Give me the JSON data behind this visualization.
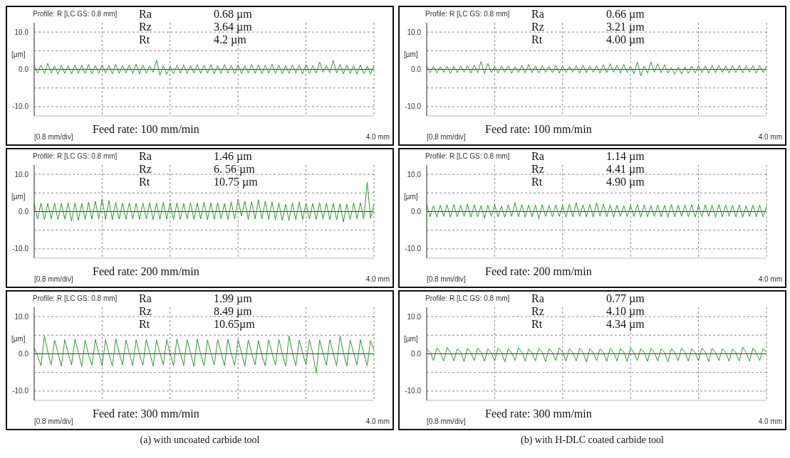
{
  "chart_data": [
    {
      "type": "line",
      "title": "Profile: R [LC GS: 0.8 mm]",
      "xlabel": "[0.8 mm/div]",
      "ylabel": "[µm]",
      "color": "#2e9a2e",
      "grid": true,
      "annotations": [
        "Ra",
        "0.68 µm",
        "Rz",
        "3.64 µm",
        "Rt",
        "4.2 µm",
        "Feed rate: 100 mm/min",
        "4.0 mm"
      ],
      "ylim": [
        -12.5,
        12.5
      ],
      "yticks": [
        {
          "value": 10,
          "label": "10.0"
        },
        {
          "value": 5,
          "label": null
        },
        {
          "value": 0,
          "label": "0.0"
        },
        {
          "value": -5,
          "label": null
        },
        {
          "value": -10,
          "label": "-10.0"
        }
      ],
      "ref_lines": [
        {
          "axis": "y",
          "value": 0,
          "color": "#333333"
        }
      ],
      "categories": [
        null,
        null,
        null,
        null,
        null,
        null,
        null,
        null,
        null,
        null,
        null,
        null,
        null,
        null,
        null,
        null,
        null,
        null,
        null,
        null,
        null,
        null,
        null,
        null,
        null,
        null,
        null,
        null,
        null,
        null,
        null,
        null,
        null,
        null,
        null,
        null,
        null,
        null,
        null,
        null,
        null,
        null,
        null,
        null,
        null,
        null,
        null,
        null,
        null,
        null,
        null,
        null,
        null,
        null,
        null,
        null,
        null,
        null,
        null,
        null,
        null,
        null,
        null,
        null,
        null,
        null,
        null,
        null,
        null,
        null,
        null,
        null,
        null,
        null,
        null,
        null,
        null,
        null,
        null,
        null,
        null,
        null,
        null,
        null,
        null,
        null,
        null,
        null,
        null,
        null,
        null,
        null,
        null,
        null,
        null,
        null,
        null,
        null,
        null,
        null,
        null
      ],
      "values": [
        1.0,
        -1.0,
        1.2,
        -1.1,
        1.6,
        -1.0,
        0.9,
        -1.3,
        1.1,
        -1.1,
        1.0,
        -1.2,
        1.2,
        -1.0,
        1.1,
        -1.1,
        1.3,
        -1.2,
        1.0,
        -1.1,
        1.2,
        -1.0,
        1.1,
        -1.2,
        1.3,
        -1.1,
        1.0,
        -1.0,
        1.2,
        -1.1,
        1.4,
        -1.2,
        1.1,
        -1.0,
        0.9,
        -0.8,
        2.5,
        -1.6,
        1.0,
        -1.3,
        0.8,
        -1.2,
        1.1,
        -1.0,
        1.2,
        -1.1,
        1.0,
        -1.0,
        1.3,
        -1.1,
        1.1,
        -1.0,
        1.2,
        -1.2,
        1.0,
        -1.1,
        1.3,
        -1.0,
        1.1,
        -1.2,
        1.2,
        -1.1,
        1.0,
        -1.0,
        1.3,
        -1.1,
        1.2,
        -1.2,
        1.1,
        -1.0,
        1.4,
        -1.1,
        1.1,
        -1.2,
        1.0,
        -1.1,
        1.2,
        -1.0,
        1.1,
        -1.2,
        1.3,
        -1.1,
        1.0,
        -1.0,
        2.0,
        -0.8,
        1.0,
        -0.9,
        2.4,
        -1.0,
        1.3,
        -1.2,
        1.1,
        -1.1,
        1.0,
        -1.3,
        1.2,
        -1.2,
        0.9,
        -1.3,
        1.1
      ]
    },
    {
      "type": "line",
      "title": "Profile: R [LC GS: 0.8 mm]",
      "xlabel": "[0.8 mm/div]",
      "ylabel": "[µm]",
      "color": "#2e9a2e",
      "grid": true,
      "annotations": [
        "Ra",
        "0.66 µm",
        "Rz",
        "3.21 µm",
        "Rt",
        "4.00 µm",
        "Feed rate: 100 mm/min",
        "4.0 mm"
      ],
      "ylim": [
        -12.5,
        12.5
      ],
      "yticks": [
        {
          "value": 10,
          "label": "10.0"
        },
        {
          "value": 5,
          "label": null
        },
        {
          "value": 0,
          "label": "0.0"
        },
        {
          "value": -5,
          "label": null
        },
        {
          "value": -10,
          "label": "-10.0"
        }
      ],
      "ref_lines": [
        {
          "axis": "y",
          "value": 0,
          "color": "#333333"
        }
      ],
      "categories": [
        null,
        null,
        null,
        null,
        null,
        null,
        null,
        null,
        null,
        null,
        null,
        null,
        null,
        null,
        null,
        null,
        null,
        null,
        null,
        null,
        null,
        null,
        null,
        null,
        null,
        null,
        null,
        null,
        null,
        null,
        null,
        null,
        null,
        null,
        null,
        null,
        null,
        null,
        null,
        null,
        null,
        null,
        null,
        null,
        null,
        null,
        null,
        null,
        null,
        null,
        null,
        null,
        null,
        null,
        null,
        null,
        null,
        null,
        null,
        null,
        null,
        null,
        null,
        null,
        null,
        null,
        null,
        null,
        null,
        null,
        null,
        null,
        null,
        null,
        null,
        null,
        null,
        null,
        null,
        null,
        null,
        null,
        null,
        null,
        null,
        null,
        null,
        null,
        null,
        null,
        null,
        null,
        null,
        null,
        null,
        null,
        null,
        null,
        null,
        null,
        null
      ],
      "values": [
        1.0,
        -0.9,
        0.8,
        -1.0,
        0.7,
        -0.8,
        0.9,
        -1.1,
        0.8,
        -0.9,
        0.9,
        -0.8,
        1.0,
        -1.0,
        1.2,
        -0.9,
        2.1,
        -1.1,
        1.6,
        -0.9,
        0.8,
        -1.0,
        0.9,
        -0.8,
        1.0,
        -1.1,
        0.7,
        -0.9,
        1.1,
        -1.0,
        1.3,
        -0.9,
        0.9,
        -1.0,
        1.0,
        -0.8,
        0.8,
        -0.9,
        1.0,
        -1.0,
        0.9,
        -0.9,
        0.8,
        -0.8,
        1.0,
        -1.0,
        1.1,
        -0.9,
        0.9,
        -0.8,
        1.0,
        -1.0,
        1.2,
        -0.9,
        1.5,
        -0.8,
        1.1,
        -1.0,
        1.3,
        -0.9,
        0.8,
        -1.2,
        2.0,
        -1.8,
        0.9,
        -1.0,
        2.0,
        -0.8,
        1.5,
        -0.9,
        1.2,
        -1.0,
        0.5,
        -1.3,
        0.6,
        -1.2,
        0.7,
        -1.1,
        0.9,
        -1.0,
        1.0,
        -0.9,
        0.9,
        -1.0,
        1.1,
        -0.9,
        1.0,
        -0.8,
        0.9,
        -1.0,
        1.0,
        -0.9,
        1.1,
        -1.0,
        0.9,
        -0.8,
        1.0,
        -1.0,
        1.1,
        -0.9,
        0.9
      ]
    },
    {
      "type": "line",
      "title": "Profile: R [LC GS: 0.8 mm]",
      "xlabel": "[0.8 mm/div]",
      "ylabel": "[µm]",
      "color": "#2e9a2e",
      "grid": true,
      "annotations": [
        "Ra",
        "1.46 µm",
        "Rz",
        "6. 56 µm",
        "Rt",
        "10.75 µm",
        "Feed rate: 200 mm/min",
        "4.0 mm"
      ],
      "ylim": [
        -12.5,
        12.5
      ],
      "yticks": [
        {
          "value": 10,
          "label": "10.0"
        },
        {
          "value": 5,
          "label": null
        },
        {
          "value": 0,
          "label": "0.0"
        },
        {
          "value": -5,
          "label": null
        },
        {
          "value": -10,
          "label": "-10.0"
        }
      ],
      "ref_lines": [
        {
          "axis": "y",
          "value": 0,
          "color": "#333333"
        }
      ],
      "categories": [
        null,
        null,
        null,
        null,
        null,
        null,
        null,
        null,
        null,
        null,
        null,
        null,
        null,
        null,
        null,
        null,
        null,
        null,
        null,
        null,
        null,
        null,
        null,
        null,
        null,
        null,
        null,
        null,
        null,
        null,
        null,
        null,
        null,
        null,
        null,
        null,
        null,
        null,
        null,
        null,
        null,
        null,
        null,
        null,
        null,
        null,
        null,
        null,
        null,
        null,
        null,
        null,
        null,
        null,
        null,
        null,
        null,
        null,
        null,
        null,
        null,
        null,
        null,
        null,
        null,
        null,
        null,
        null,
        null,
        null,
        null,
        null,
        null,
        null,
        null,
        null,
        null,
        null,
        null,
        null,
        null,
        null,
        null,
        null,
        null,
        null,
        null,
        null,
        null,
        null,
        null,
        null,
        null,
        null,
        null,
        null,
        null,
        null,
        null,
        null,
        null
      ],
      "values": [
        2.0,
        -2.0,
        2.3,
        -2.1,
        2.2,
        -2.0,
        2.3,
        -2.2,
        2.2,
        -2.0,
        2.4,
        -2.6,
        2.3,
        -2.3,
        2.2,
        -2.1,
        2.5,
        -2.0,
        2.8,
        -2.0,
        3.5,
        -2.1,
        3.0,
        -2.2,
        2.5,
        -2.0,
        2.3,
        -2.1,
        2.4,
        -2.0,
        2.2,
        -2.1,
        2.3,
        -2.0,
        2.4,
        -2.2,
        2.3,
        -2.1,
        2.5,
        -2.0,
        2.4,
        -2.2,
        2.3,
        -2.1,
        2.2,
        -2.0,
        2.4,
        -2.1,
        2.3,
        -2.0,
        2.5,
        -2.2,
        2.3,
        -2.1,
        2.4,
        -2.0,
        2.2,
        -2.1,
        2.6,
        -2.0,
        3.3,
        -1.2,
        2.8,
        -2.1,
        2.7,
        -2.0,
        3.2,
        -2.0,
        2.8,
        -2.1,
        2.6,
        -2.2,
        2.3,
        -2.4,
        2.0,
        -2.4,
        2.4,
        -2.2,
        2.6,
        -2.1,
        2.3,
        -2.0,
        2.2,
        -2.1,
        2.4,
        -2.0,
        2.3,
        -2.1,
        2.2,
        -2.2,
        2.1,
        -2.8,
        2.0,
        -2.2,
        2.3,
        -1.9,
        2.4,
        -2.0,
        7.9,
        -1.8,
        2.0
      ]
    },
    {
      "type": "line",
      "title": "Profile: R [LC GS: 0.8 mm]",
      "xlabel": "[0.8 mm/div]",
      "ylabel": "[µm]",
      "color": "#2e9a2e",
      "grid": true,
      "annotations": [
        "Ra",
        "1.14 µm",
        "Rz",
        "4.41 µm",
        "Rt",
        "4.90 µm",
        "Feed rate: 200 mm/min",
        "4.0 mm"
      ],
      "ylim": [
        -12.5,
        12.5
      ],
      "yticks": [
        {
          "value": 10,
          "label": "10.0"
        },
        {
          "value": 5,
          "label": null
        },
        {
          "value": 0,
          "label": "0.0"
        },
        {
          "value": -5,
          "label": null
        },
        {
          "value": -10,
          "label": "-10.0"
        }
      ],
      "ref_lines": [
        {
          "axis": "y",
          "value": 0,
          "color": "#333333"
        }
      ],
      "categories": [
        null,
        null,
        null,
        null,
        null,
        null,
        null,
        null,
        null,
        null,
        null,
        null,
        null,
        null,
        null,
        null,
        null,
        null,
        null,
        null,
        null,
        null,
        null,
        null,
        null,
        null,
        null,
        null,
        null,
        null,
        null,
        null,
        null,
        null,
        null,
        null,
        null,
        null,
        null,
        null,
        null,
        null,
        null,
        null,
        null,
        null,
        null,
        null,
        null,
        null,
        null,
        null,
        null,
        null,
        null,
        null,
        null,
        null,
        null,
        null,
        null,
        null,
        null,
        null,
        null,
        null,
        null,
        null,
        null,
        null,
        null,
        null,
        null,
        null,
        null,
        null,
        null,
        null,
        null,
        null,
        null,
        null,
        null,
        null,
        null,
        null,
        null,
        null,
        null,
        null,
        null,
        null,
        null,
        null,
        null,
        null,
        null,
        null,
        null,
        null,
        null
      ],
      "values": [
        1.9,
        -1.4,
        1.6,
        -1.5,
        1.7,
        -1.3,
        1.8,
        -1.5,
        1.9,
        -1.4,
        1.7,
        -1.3,
        2.0,
        -1.5,
        1.8,
        -1.4,
        1.6,
        -1.8,
        1.7,
        -1.3,
        1.9,
        -1.4,
        1.5,
        -1.5,
        1.8,
        -1.3,
        2.4,
        -1.4,
        1.9,
        -1.5,
        1.7,
        -1.4,
        1.8,
        -2.0,
        1.9,
        -1.3,
        1.6,
        -1.4,
        1.8,
        -1.3,
        1.7,
        -1.5,
        2.0,
        -1.4,
        2.4,
        -1.3,
        1.8,
        -1.4,
        1.9,
        -1.5,
        2.4,
        -1.3,
        2.0,
        -1.4,
        1.8,
        -1.5,
        1.7,
        -1.3,
        1.6,
        -1.4,
        1.7,
        -1.3,
        1.9,
        -1.5,
        1.8,
        -1.4,
        1.6,
        -1.3,
        1.8,
        -1.4,
        1.7,
        -1.5,
        1.9,
        -1.4,
        1.7,
        -1.3,
        1.8,
        -1.4,
        1.9,
        -1.5,
        1.7,
        -1.4,
        1.8,
        -1.3,
        1.7,
        -1.5,
        1.9,
        -1.4,
        1.8,
        -1.3,
        1.7,
        -1.4,
        1.8,
        -1.5,
        1.6,
        -1.3,
        1.7,
        -1.4,
        1.8,
        -1.5,
        1.5
      ]
    },
    {
      "type": "line",
      "title": "Profile: R [LC GS: 0.8 mm]",
      "xlabel": "[0.8 mm/div]",
      "ylabel": "[µm]",
      "color": "#2e9a2e",
      "grid": true,
      "annotations": [
        "Ra",
        "1.99 µm",
        "Rz",
        "8.49 µm",
        "Rt",
        "10.65µm",
        "Feed rate: 300 mm/min",
        "4.0 mm",
        "(a) with uncoated carbide tool"
      ],
      "ylim": [
        -12.5,
        12.5
      ],
      "yticks": [
        {
          "value": 10,
          "label": "10.0"
        },
        {
          "value": 5,
          "label": null
        },
        {
          "value": 0,
          "label": "0.0"
        },
        {
          "value": -5,
          "label": null
        },
        {
          "value": -10,
          "label": "-10.0"
        }
      ],
      "ref_lines": [
        {
          "axis": "y",
          "value": 0,
          "color": "#333333"
        }
      ],
      "categories": [
        null,
        null,
        null,
        null,
        null,
        null,
        null,
        null,
        null,
        null,
        null,
        null,
        null,
        null,
        null,
        null,
        null,
        null,
        null,
        null,
        null,
        null,
        null,
        null,
        null,
        null,
        null,
        null,
        null,
        null,
        null,
        null,
        null,
        null,
        null,
        null,
        null,
        null,
        null,
        null,
        null,
        null,
        null,
        null,
        null,
        null,
        null,
        null,
        null,
        null,
        null,
        null,
        null,
        null,
        null,
        null,
        null,
        null,
        null,
        null,
        null,
        null,
        null,
        null,
        null,
        null,
        null,
        null,
        null,
        null,
        null,
        null,
        null,
        null,
        null,
        null,
        null,
        null,
        null,
        null,
        null,
        null,
        null,
        null,
        null,
        null,
        null,
        null,
        null,
        null,
        null,
        null,
        null,
        null,
        null,
        null,
        null,
        null,
        null,
        null,
        null
      ],
      "values": [
        1.5,
        -0.5,
        -3.2,
        4.8,
        0.5,
        -3.0,
        3.7,
        0.3,
        -3.3,
        3.8,
        0.2,
        -3.0,
        3.9,
        0.4,
        -3.4,
        3.7,
        -0.3,
        -3.1,
        3.9,
        0.2,
        -3.2,
        3.8,
        0.1,
        -3.3,
        4.0,
        0.3,
        -3.0,
        3.7,
        0.2,
        -3.2,
        3.8,
        -0.2,
        -3.1,
        3.9,
        0.3,
        -3.3,
        3.7,
        0.2,
        -3.0,
        3.8,
        0.1,
        -3.2,
        4.0,
        0.2,
        -3.1,
        3.8,
        0.3,
        -3.3,
        3.9,
        -0.1,
        -3.2,
        3.7,
        0.2,
        -3.0,
        3.8,
        0.4,
        -3.2,
        3.9,
        0.1,
        -3.1,
        3.8,
        0.3,
        -3.3,
        3.7,
        0.2,
        -3.0,
        3.6,
        -0.3,
        -3.2,
        3.8,
        0.2,
        -3.1,
        3.9,
        0.1,
        -3.3,
        4.8,
        0.3,
        -3.2,
        3.7,
        0.2,
        -3.0,
        3.8,
        0.1,
        -5.2,
        3.7,
        0.3,
        -3.1,
        3.8,
        0.2,
        -3.2,
        4.8,
        0.3,
        -3.3,
        3.7,
        0.2,
        -3.0,
        3.8,
        0.1,
        -3.2,
        3.6,
        1.0
      ]
    },
    {
      "type": "line",
      "title": "Profile: R [LC GS: 0.8 mm]",
      "xlabel": "[0.8 mm/div]",
      "ylabel": "[µm]",
      "color": "#2e9a2e",
      "grid": true,
      "annotations": [
        "Ra",
        "0.77 µm",
        "Rz",
        "4.10 µm",
        "Rt",
        "4.34 µm",
        "Feed rate: 300 mm/min",
        "4.0 mm",
        "(b) with H-DLC coated carbide tool"
      ],
      "ylim": [
        -12.5,
        12.5
      ],
      "yticks": [
        {
          "value": 10,
          "label": "10.0"
        },
        {
          "value": 5,
          "label": null
        },
        {
          "value": 0,
          "label": "0.0"
        },
        {
          "value": -5,
          "label": null
        },
        {
          "value": -10,
          "label": "-10.0"
        }
      ],
      "ref_lines": [
        {
          "axis": "y",
          "value": 0,
          "color": "#333333"
        }
      ],
      "categories": [
        null,
        null,
        null,
        null,
        null,
        null,
        null,
        null,
        null,
        null,
        null,
        null,
        null,
        null,
        null,
        null,
        null,
        null,
        null,
        null,
        null,
        null,
        null,
        null,
        null,
        null,
        null,
        null,
        null,
        null,
        null,
        null,
        null,
        null,
        null,
        null,
        null,
        null,
        null,
        null,
        null,
        null,
        null,
        null,
        null,
        null,
        null,
        null,
        null,
        null,
        null,
        null,
        null,
        null,
        null,
        null,
        null,
        null,
        null,
        null,
        null,
        null,
        null,
        null,
        null,
        null,
        null,
        null,
        null,
        null,
        null,
        null,
        null,
        null,
        null,
        null,
        null,
        null,
        null,
        null,
        null,
        null,
        null,
        null,
        null,
        null,
        null,
        null,
        null,
        null,
        null,
        null,
        null,
        null,
        null,
        null,
        null,
        null,
        null,
        null,
        null
      ],
      "values": [
        1.4,
        0.4,
        -1.8,
        1.6,
        0.3,
        -2.0,
        1.7,
        0.4,
        -1.9,
        1.3,
        0.5,
        -2.1,
        1.5,
        0.3,
        -1.8,
        1.6,
        0.4,
        -2.0,
        1.3,
        0.3,
        -1.9,
        1.5,
        0.5,
        -2.2,
        1.4,
        0.3,
        -1.8,
        1.6,
        0.4,
        -2.0,
        1.3,
        0.3,
        -1.9,
        1.5,
        0.4,
        -2.1,
        1.4,
        0.3,
        -1.8,
        1.6,
        0.5,
        -2.0,
        1.4,
        0.3,
        -1.9,
        1.5,
        0.4,
        -2.2,
        1.4,
        0.3,
        -1.8,
        1.3,
        0.4,
        -2.0,
        1.5,
        0.3,
        -1.9,
        1.4,
        0.5,
        -2.1,
        1.6,
        0.3,
        -1.8,
        1.4,
        0.4,
        -2.0,
        1.5,
        0.3,
        -1.9,
        1.3,
        0.4,
        -2.2,
        1.4,
        0.3,
        -1.8,
        1.5,
        0.4,
        -2.0,
        1.4,
        0.3,
        -1.9,
        1.6,
        0.4,
        -2.1,
        1.5,
        0.3,
        -1.8,
        1.4,
        0.4,
        -2.0,
        1.3,
        0.3,
        -1.9,
        1.8,
        0.4,
        -2.0,
        1.5,
        0.3,
        -1.8,
        1.4,
        0.3
      ]
    }
  ]
}
